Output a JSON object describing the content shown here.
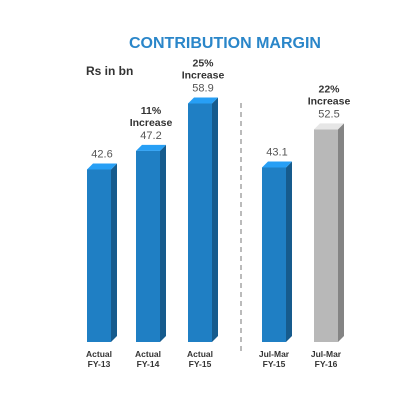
{
  "chart_data": {
    "type": "bar",
    "title": "CONTRIBUTION MARGIN",
    "unit_label": "Rs in bn",
    "ylim": [
      0,
      65
    ],
    "categories": [
      [
        "Actual",
        "FY-13"
      ],
      [
        "Actual",
        "FY-14"
      ],
      [
        "Actual",
        "FY-15"
      ],
      [
        "Jul-Mar",
        "FY-15"
      ],
      [
        "Jul-Mar",
        "FY-16"
      ]
    ],
    "values": [
      42.6,
      47.2,
      58.9,
      43.1,
      52.5
    ],
    "value_labels": [
      "42.6",
      "47.2",
      "58.9",
      "43.1",
      "52.5"
    ],
    "annotations": [
      null,
      [
        "11%",
        "Increase"
      ],
      [
        "25%",
        "Increase"
      ],
      null,
      [
        "22%",
        "Increase"
      ]
    ],
    "colors": {
      "actual": "#1f7fc4",
      "projected": "#b8b8b8",
      "title": "#2a86c9"
    },
    "bar_styles": [
      "actual",
      "actual",
      "actual",
      "actual",
      "projected"
    ],
    "separator": "dashed line between FY-15 actual and Jul-Mar groups",
    "grid": false,
    "legend": "none"
  }
}
